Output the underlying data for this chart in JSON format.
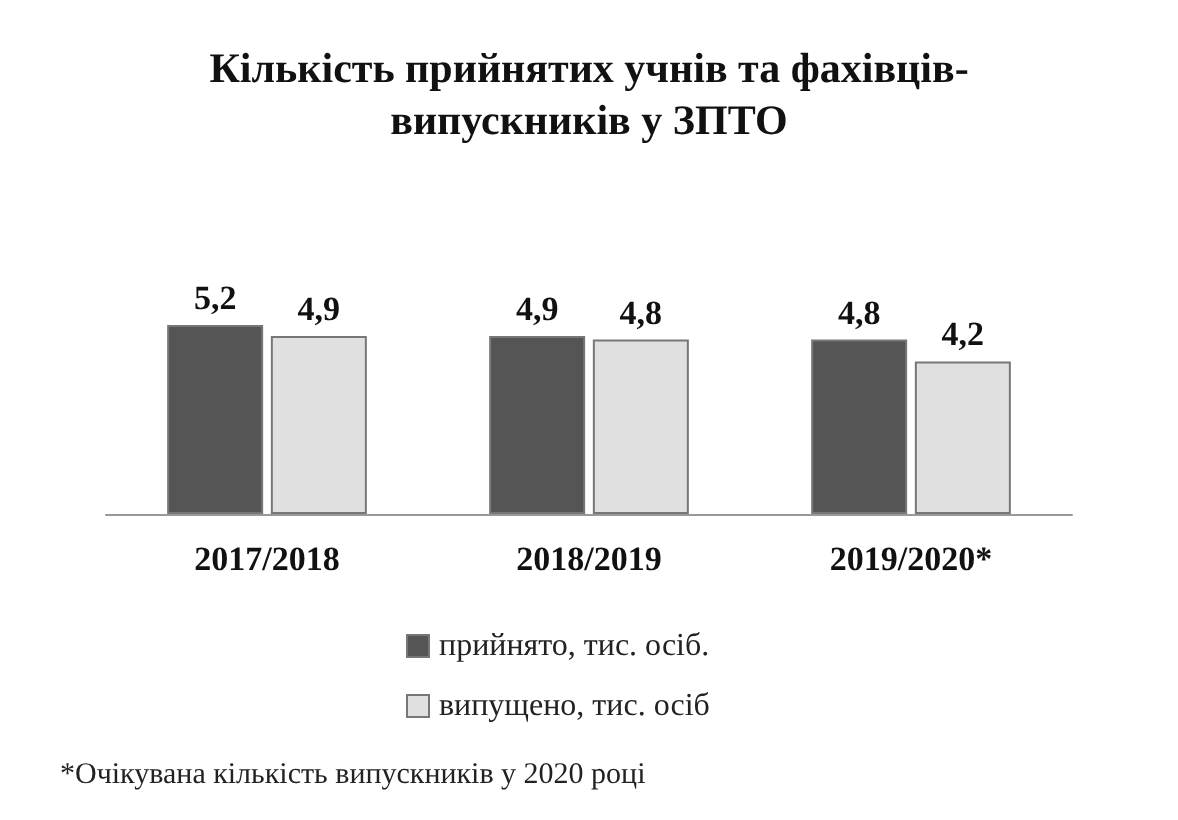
{
  "chart_data": {
    "type": "bar",
    "title": "Кількість прийнятих учнів та фахівців-\nвипускників у ЗПТО",
    "categories": [
      "2017/2018",
      "2018/2019",
      "2019/2020*"
    ],
    "series": [
      {
        "name": "прийнято, тис. осіб.",
        "color": "#555555",
        "values": [
          5.2,
          4.9,
          4.8
        ],
        "value_labels": [
          "5,2",
          "4,9",
          "4,8"
        ]
      },
      {
        "name": "випущено, тис. осіб",
        "color": "#e0e0e0",
        "values": [
          4.9,
          4.8,
          4.2
        ],
        "value_labels": [
          "4,9",
          "4,8",
          "4,2"
        ]
      }
    ],
    "legend": "bottom",
    "annotations": [
      "*Очікувана кількість випускників у 2020 році"
    ]
  }
}
